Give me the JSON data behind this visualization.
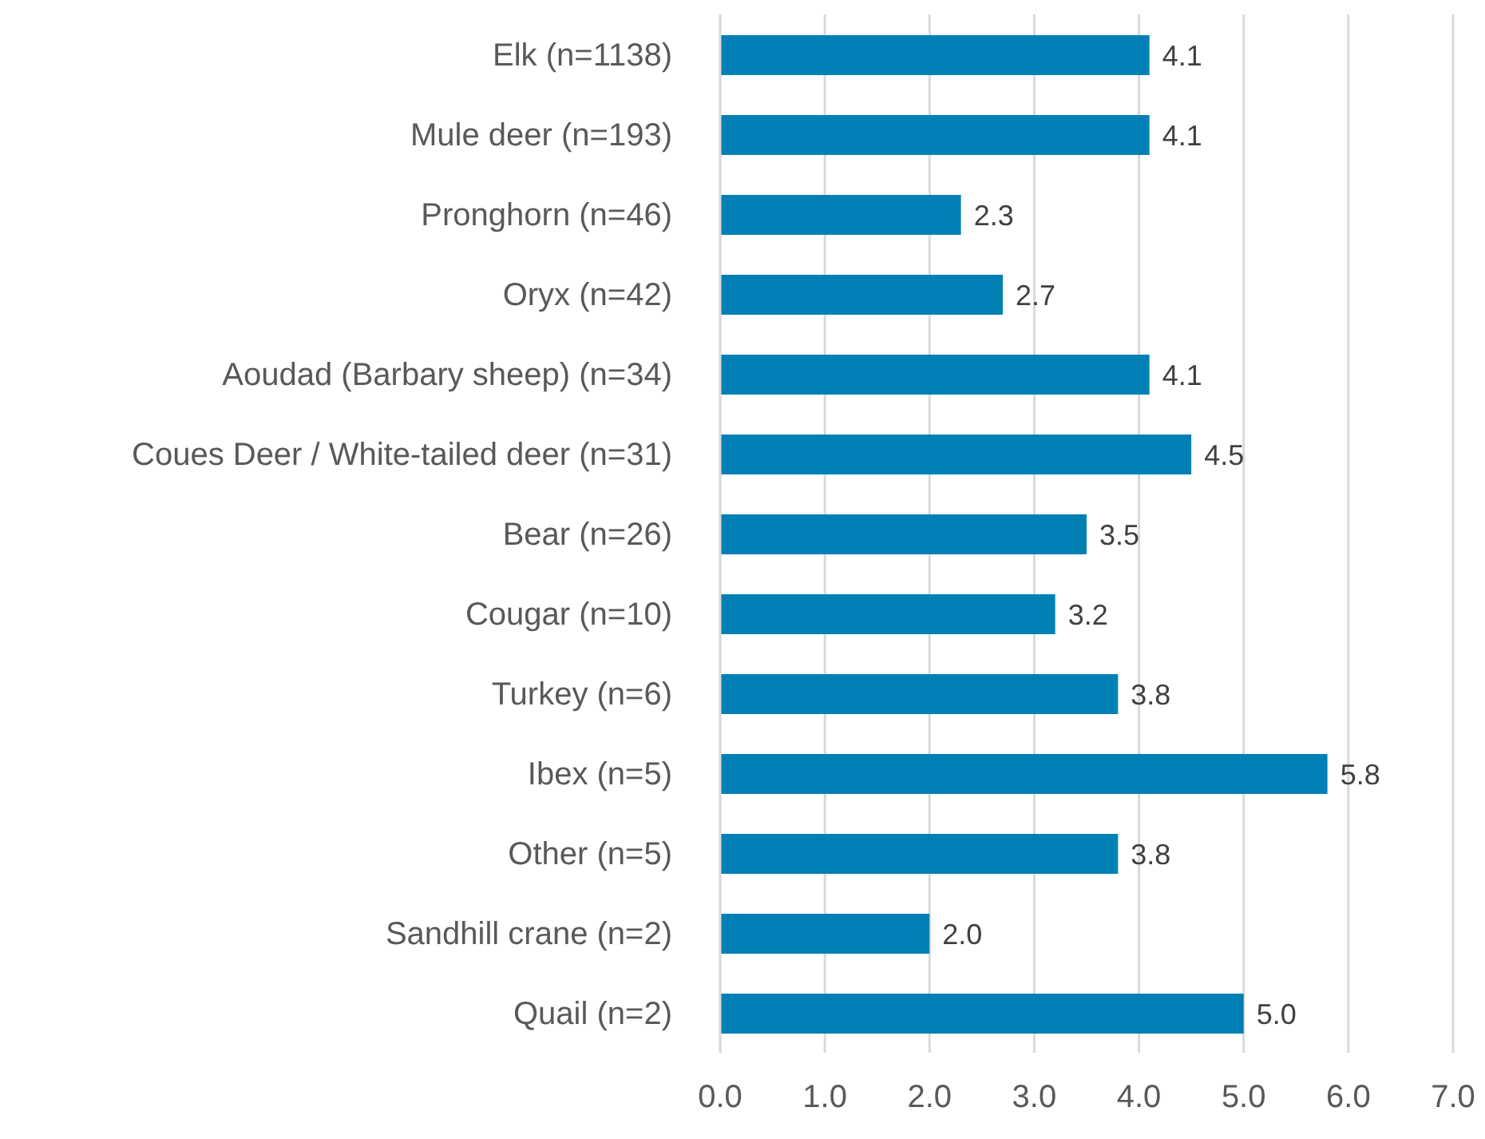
{
  "chart_data": {
    "type": "bar",
    "orientation": "horizontal",
    "categories": [
      "Elk (n=1138)",
      "Mule deer (n=193)",
      "Pronghorn (n=46)",
      "Oryx (n=42)",
      "Aoudad (Barbary sheep) (n=34)",
      "Coues Deer / White-tailed deer (n=31)",
      "Bear (n=26)",
      "Cougar (n=10)",
      "Turkey (n=6)",
      "Ibex (n=5)",
      "Other (n=5)",
      "Sandhill crane (n=2)",
      "Quail (n=2)"
    ],
    "values": [
      4.1,
      4.1,
      2.3,
      2.7,
      4.1,
      4.5,
      3.5,
      3.2,
      3.8,
      5.8,
      3.8,
      2.0,
      5.0
    ],
    "value_labels": [
      "4.1",
      "4.1",
      "2.3",
      "2.7",
      "4.1",
      "4.5",
      "3.5",
      "3.2",
      "3.8",
      "5.8",
      "3.8",
      "2.0",
      "5.0"
    ],
    "color": "#0080b4",
    "xlim": [
      0,
      7
    ],
    "xticks": [
      {
        "value": 0,
        "label": "0.0"
      },
      {
        "value": 1,
        "label": "1.0"
      },
      {
        "value": 2,
        "label": "2.0"
      },
      {
        "value": 3,
        "label": "3.0"
      },
      {
        "value": 4,
        "label": "4.0"
      },
      {
        "value": 5,
        "label": "5.0"
      },
      {
        "value": 6,
        "label": "6.0"
      },
      {
        "value": 7,
        "label": "7.0"
      }
    ],
    "grid": "x",
    "legend": false
  }
}
